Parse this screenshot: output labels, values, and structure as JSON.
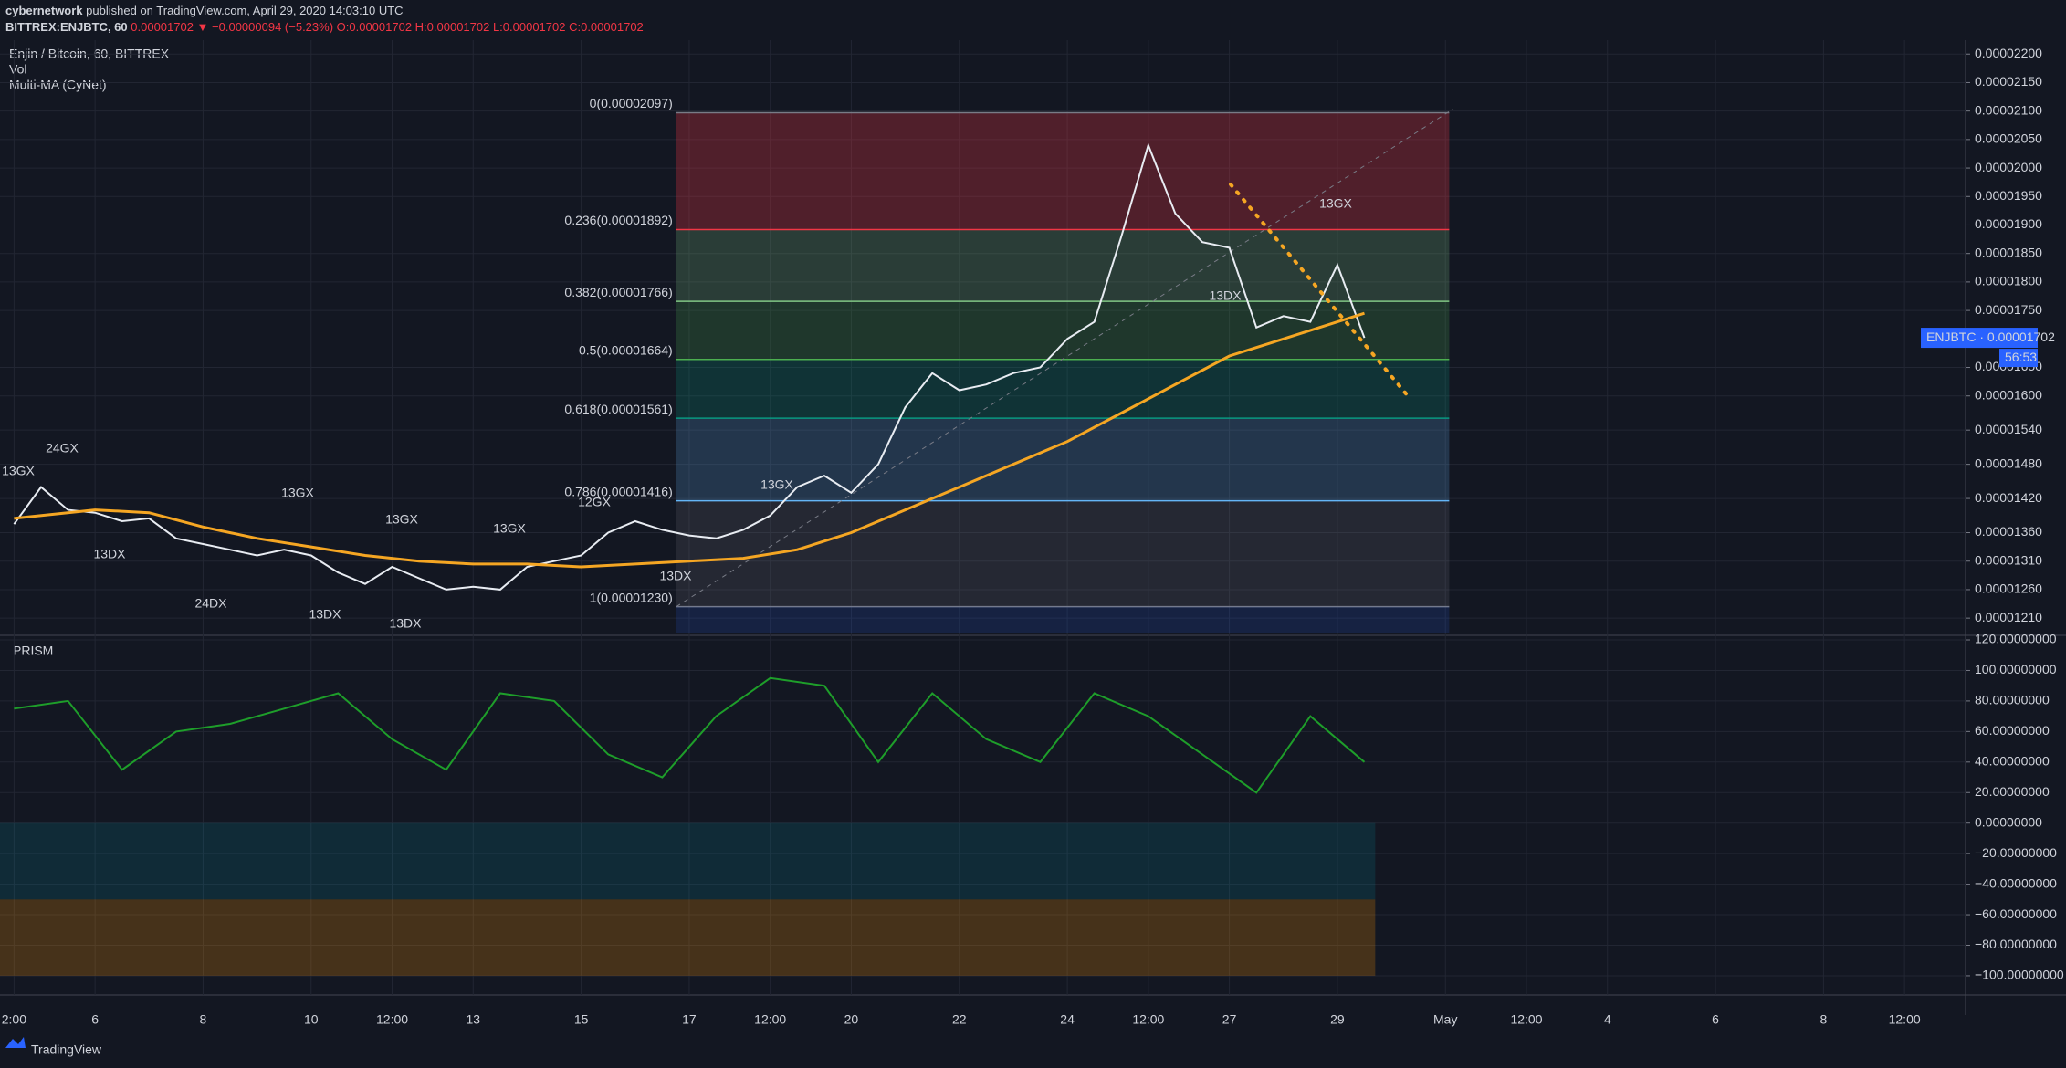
{
  "header": {
    "publisher": "cybernetwork",
    "published": "published on TradingView.com, April 29, 2020 14:03:10 UTC",
    "symbol": "BITTREX:ENJBTC, 60",
    "quote": "0.00001702 ▼ −0.00000094 (−5.23%) O:0.00001702 H:0.00001702 L:0.00001702 C:0.00001702"
  },
  "legend": [
    "Enjin / Bitcoin, 60, BITTREX",
    "Vol",
    "Multi-MA (CyNet)"
  ],
  "footer": "TradingView",
  "chart_data": [
    {
      "type": "line",
      "title": "Enjin / Bitcoin, 60, BITTREX",
      "xlim": [
        4.24,
        40.63
      ],
      "ylim": [
        1.183e-05,
        2.218e-05
      ],
      "x": [
        4.5,
        5,
        5.5,
        6,
        6.5,
        7,
        7.5,
        8,
        8.5,
        9,
        9.5,
        10,
        10.5,
        11,
        11.5,
        12,
        12.5,
        13,
        13.5,
        14,
        14.5,
        15,
        15.5,
        16,
        16.5,
        17,
        17.5,
        18,
        18.5,
        19,
        19.5,
        20,
        20.5,
        21,
        21.5,
        22,
        22.5,
        23,
        23.5,
        24,
        24.5,
        25,
        25.5,
        26,
        26.5,
        27,
        27.5,
        28,
        28.5,
        29,
        29.5
      ],
      "xticks": [
        {
          "value": 4.5,
          "label": "2:00"
        },
        6,
        8,
        10,
        {
          "value": 11.5,
          "label": "12:00"
        },
        13,
        15,
        17,
        {
          "value": 18.5,
          "label": "12:00"
        },
        20,
        22,
        24,
        {
          "value": 25.5,
          "label": "12:00"
        },
        27,
        29,
        {
          "value": 31,
          "label": "May"
        },
        {
          "value": 32.5,
          "label": "12:00"
        },
        {
          "value": 34,
          "label": "4"
        },
        {
          "value": 36,
          "label": "6"
        },
        {
          "value": 38,
          "label": "8"
        },
        {
          "value": 39.5,
          "label": "12:00"
        }
      ],
      "yticks": [
        {
          "value": 2.2e-05,
          "label": "0.00002200"
        },
        {
          "value": 2.15e-05,
          "label": "0.00002150"
        },
        {
          "value": 2.1e-05,
          "label": "0.00002100"
        },
        {
          "value": 2.05e-05,
          "label": "0.00002050"
        },
        {
          "value": 2e-05,
          "label": "0.00002000"
        },
        {
          "value": 1.95e-05,
          "label": "0.00001950"
        },
        {
          "value": 1.9e-05,
          "label": "0.00001900"
        },
        {
          "value": 1.85e-05,
          "label": "0.00001850"
        },
        {
          "value": 1.8e-05,
          "label": "0.00001800"
        },
        {
          "value": 1.75e-05,
          "label": "0.00001750"
        },
        {
          "value": 1.65e-05,
          "label": "0.00001650"
        },
        {
          "value": 1.6e-05,
          "label": "0.00001600"
        },
        {
          "value": 1.54e-05,
          "label": "0.00001540"
        },
        {
          "value": 1.48e-05,
          "label": "0.00001480"
        },
        {
          "value": 1.42e-05,
          "label": "0.00001420"
        },
        {
          "value": 1.36e-05,
          "label": "0.00001360"
        },
        {
          "value": 1.31e-05,
          "label": "0.00001310"
        },
        {
          "value": 1.26e-05,
          "label": "0.00001260"
        },
        {
          "value": 1.21e-05,
          "label": "0.00001210"
        }
      ],
      "series": [
        {
          "name": "ENJBTC",
          "color": "#e8ecf2",
          "values": [
            1.375e-05,
            1.44e-05,
            1.4e-05,
            1.395e-05,
            1.38e-05,
            1.385e-05,
            1.35e-05,
            1.34e-05,
            1.33e-05,
            1.32e-05,
            1.33e-05,
            1.32e-05,
            1.29e-05,
            1.27e-05,
            1.3e-05,
            1.28e-05,
            1.26e-05,
            1.265e-05,
            1.26e-05,
            1.3e-05,
            1.31e-05,
            1.32e-05,
            1.36e-05,
            1.38e-05,
            1.365e-05,
            1.355e-05,
            1.35e-05,
            1.365e-05,
            1.39e-05,
            1.44e-05,
            1.46e-05,
            1.43e-05,
            1.48e-05,
            1.58e-05,
            1.64e-05,
            1.61e-05,
            1.62e-05,
            1.64e-05,
            1.65e-05,
            1.7e-05,
            1.73e-05,
            1.88e-05,
            2.04e-05,
            1.92e-05,
            1.87e-05,
            1.86e-05,
            1.72e-05,
            1.74e-05,
            1.73e-05,
            1.83e-05,
            1.702e-05
          ]
        },
        {
          "name": "MA",
          "color": "#f5a623",
          "x": [
            4.5,
            6,
            7,
            8,
            9,
            10,
            11,
            12,
            13,
            14,
            15,
            16,
            17,
            18,
            19,
            20,
            21,
            22,
            23,
            24,
            25,
            26,
            27,
            28,
            29,
            29.5
          ],
          "values": [
            1.385e-05,
            1.4e-05,
            1.395e-05,
            1.37e-05,
            1.35e-05,
            1.335e-05,
            1.32e-05,
            1.31e-05,
            1.305e-05,
            1.305e-05,
            1.3e-05,
            1.305e-05,
            1.31e-05,
            1.315e-05,
            1.33e-05,
            1.36e-05,
            1.4e-05,
            1.44e-05,
            1.48e-05,
            1.52e-05,
            1.57e-05,
            1.62e-05,
            1.67e-05,
            1.7e-05,
            1.73e-05,
            1.745e-05
          ]
        }
      ],
      "fib": [
        {
          "label": "0(0.00002097)",
          "value": 2.097e-05,
          "color": "#787b86"
        },
        {
          "label": "0.236(0.00001892)",
          "value": 1.892e-05,
          "color": "#f23645"
        },
        {
          "label": "0.382(0.00001766)",
          "value": 1.766e-05,
          "color": "#81c784"
        },
        {
          "label": "0.5(0.00001664)",
          "value": 1.664e-05,
          "color": "#4caf50"
        },
        {
          "label": "0.618(0.00001561)",
          "value": 1.561e-05,
          "color": "#089981"
        },
        {
          "label": "0.786(0.00001416)",
          "value": 1.416e-05,
          "color": "#64b5f6"
        },
        {
          "label": "1(0.00001230)",
          "value": 1.23e-05,
          "color": "#787b86"
        }
      ],
      "annotations": [
        "13GX",
        "24GX",
        "13GX",
        "13GX",
        "13GX",
        "12GX",
        "13GX",
        "13GX",
        "13DX",
        "24DX",
        "13DX",
        "13DX",
        "13DX",
        "13DX"
      ],
      "price_tag": "ENJBTC · 0.00001702",
      "countdown": "56:53"
    },
    {
      "type": "line",
      "title": "PRISM",
      "xlim": [
        4.24,
        40.63
      ],
      "ylim": [
        -109.6,
        122.4
      ],
      "yticks": [
        {
          "value": 120,
          "label": "120.00000000"
        },
        {
          "value": 100,
          "label": "100.00000000"
        },
        {
          "value": 80,
          "label": "80.00000000"
        },
        {
          "value": 60,
          "label": "60.00000000"
        },
        {
          "value": 40,
          "label": "40.00000000"
        },
        {
          "value": 20,
          "label": "20.00000000"
        },
        {
          "value": 0,
          "label": "0.00000000"
        },
        {
          "value": -20,
          "label": "−20.00000000"
        },
        {
          "value": -40,
          "label": "−40.00000000"
        },
        {
          "value": -60,
          "label": "−60.00000000"
        },
        {
          "value": -80,
          "label": "−80.00000000"
        },
        {
          "value": -100,
          "label": "−100.00000000"
        }
      ],
      "series": [
        {
          "name": "PRISM",
          "color": "#1e9e2a",
          "x": [
            4.5,
            5.5,
            6.5,
            7.5,
            8.5,
            9.5,
            10.5,
            11.5,
            12.5,
            13.5,
            14.5,
            15.5,
            16.5,
            17.5,
            18.5,
            19.5,
            20.5,
            21.5,
            22.5,
            23.5,
            24.5,
            25.5,
            26.5,
            27.5,
            28.5,
            29.5
          ],
          "values": [
            75,
            80,
            35,
            60,
            65,
            75,
            85,
            55,
            35,
            85,
            80,
            45,
            30,
            70,
            95,
            90,
            40,
            85,
            55,
            40,
            85,
            70,
            45,
            20,
            70,
            40
          ]
        }
      ]
    }
  ]
}
